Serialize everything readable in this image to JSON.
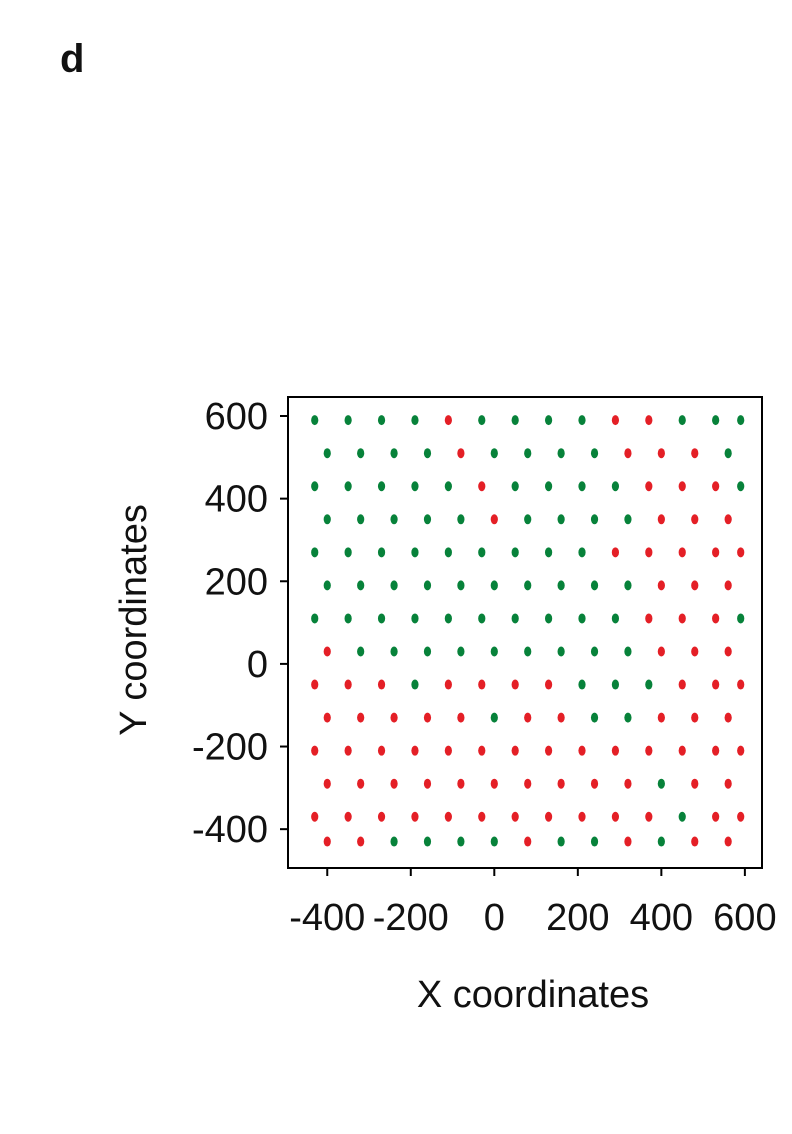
{
  "panel_label": "d",
  "chart_data": {
    "type": "scatter",
    "xlabel": "X coordinates",
    "ylabel": "Y coordinates",
    "xlim": [
      -494,
      641
    ],
    "ylim": [
      -494,
      646
    ],
    "xticks": [
      -400,
      -200,
      0,
      200,
      400,
      600
    ],
    "yticks": [
      600,
      400,
      200,
      0,
      -200,
      -400
    ],
    "grid": false,
    "series": [
      {
        "color": "#e41f26",
        "x": [
          -110,
          290,
          370,
          -80,
          320,
          400,
          480,
          -30,
          370,
          450,
          530,
          0,
          400,
          480,
          560,
          290,
          370,
          450,
          530,
          590,
          400,
          480,
          560,
          370,
          450,
          530,
          -400,
          400,
          480,
          560,
          -430,
          -350,
          -270,
          -110,
          -30,
          50,
          130,
          450,
          530,
          590,
          -400,
          -320,
          -240,
          -160,
          -80,
          80,
          160,
          400,
          480,
          560,
          -430,
          -350,
          -270,
          -190,
          -110,
          -30,
          50,
          130,
          210,
          290,
          370,
          450,
          530,
          590,
          -400,
          -320,
          -240,
          -160,
          -80,
          0,
          80,
          160,
          240,
          320,
          480,
          560,
          -430,
          -350,
          -270,
          -190,
          -110,
          -30,
          50,
          130,
          210,
          290,
          370,
          530,
          590,
          -400,
          -320,
          80,
          320,
          480,
          560
        ],
        "values": [
          590,
          590,
          590,
          510,
          510,
          510,
          510,
          430,
          430,
          430,
          430,
          350,
          350,
          350,
          350,
          270,
          270,
          270,
          270,
          270,
          190,
          190,
          190,
          110,
          110,
          110,
          30,
          30,
          30,
          30,
          -50,
          -50,
          -50,
          -50,
          -50,
          -50,
          -50,
          -50,
          -50,
          -50,
          -130,
          -130,
          -130,
          -130,
          -130,
          -130,
          -130,
          -130,
          -130,
          -130,
          -210,
          -210,
          -210,
          -210,
          -210,
          -210,
          -210,
          -210,
          -210,
          -210,
          -210,
          -210,
          -210,
          -210,
          -290,
          -290,
          -290,
          -290,
          -290,
          -290,
          -290,
          -290,
          -290,
          -290,
          -290,
          -290,
          -370,
          -370,
          -370,
          -370,
          -370,
          -370,
          -370,
          -370,
          -370,
          -370,
          -370,
          -370,
          -370,
          -430,
          -430,
          -430,
          -430,
          -430,
          -430
        ]
      },
      {
        "color": "#07823a",
        "x": [
          -430,
          -350,
          -270,
          -190,
          -30,
          50,
          130,
          210,
          450,
          530,
          590,
          -400,
          -320,
          -240,
          -160,
          0,
          80,
          160,
          240,
          560,
          -430,
          -350,
          -270,
          -190,
          -110,
          50,
          130,
          210,
          290,
          590,
          -400,
          -320,
          -240,
          -160,
          -80,
          80,
          160,
          240,
          320,
          -430,
          -350,
          -270,
          -190,
          -110,
          -30,
          50,
          130,
          210,
          -400,
          -320,
          -240,
          -160,
          -80,
          0,
          80,
          160,
          240,
          320,
          -430,
          -350,
          -270,
          -190,
          -110,
          -30,
          50,
          130,
          210,
          290,
          590,
          -320,
          -240,
          -160,
          -80,
          0,
          80,
          160,
          240,
          320,
          -190,
          210,
          290,
          370,
          0,
          240,
          320,
          400,
          450,
          -240,
          -160,
          -80,
          0,
          160,
          240,
          400
        ],
        "values": [
          590,
          590,
          590,
          590,
          590,
          590,
          590,
          590,
          590,
          590,
          590,
          510,
          510,
          510,
          510,
          510,
          510,
          510,
          510,
          510,
          430,
          430,
          430,
          430,
          430,
          430,
          430,
          430,
          430,
          430,
          350,
          350,
          350,
          350,
          350,
          350,
          350,
          350,
          350,
          270,
          270,
          270,
          270,
          270,
          270,
          270,
          270,
          270,
          190,
          190,
          190,
          190,
          190,
          190,
          190,
          190,
          190,
          190,
          110,
          110,
          110,
          110,
          110,
          110,
          110,
          110,
          110,
          110,
          110,
          30,
          30,
          30,
          30,
          30,
          30,
          30,
          30,
          30,
          -50,
          -50,
          -50,
          -50,
          -130,
          -130,
          -130,
          -290,
          -370,
          -430,
          -430,
          -430,
          -430,
          -430,
          -430,
          -430
        ]
      }
    ]
  }
}
